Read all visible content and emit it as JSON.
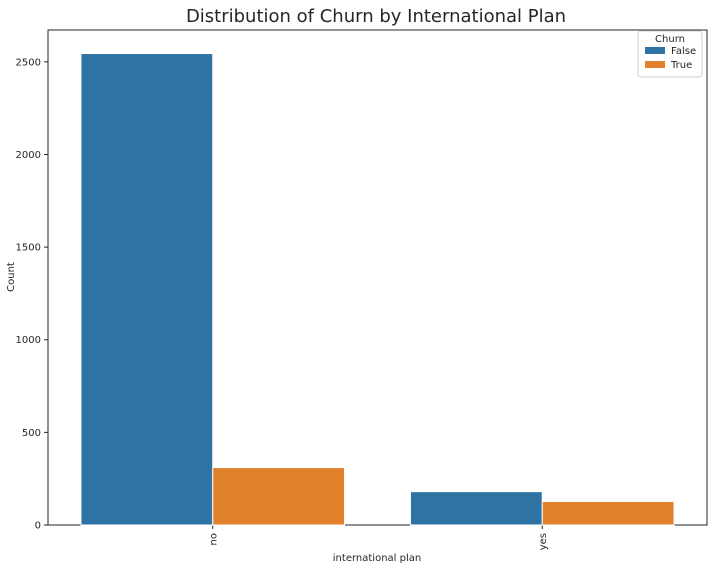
{
  "chart_data": {
    "type": "bar",
    "title": "Distribution of Churn by International Plan",
    "xlabel": "international plan",
    "ylabel": "Count",
    "categories": [
      "no",
      "yes"
    ],
    "series": [
      {
        "name": "False",
        "values": [
          2545,
          180
        ],
        "color": "#2f73a4"
      },
      {
        "name": "True",
        "values": [
          310,
          127
        ],
        "color": "#e1812c"
      }
    ],
    "ylim": [
      0,
      2672
    ],
    "yticks": [
      0,
      500,
      1000,
      1500,
      2000,
      2500
    ],
    "grid": false,
    "legend": {
      "title": "Churn",
      "placement": "top-right"
    }
  }
}
